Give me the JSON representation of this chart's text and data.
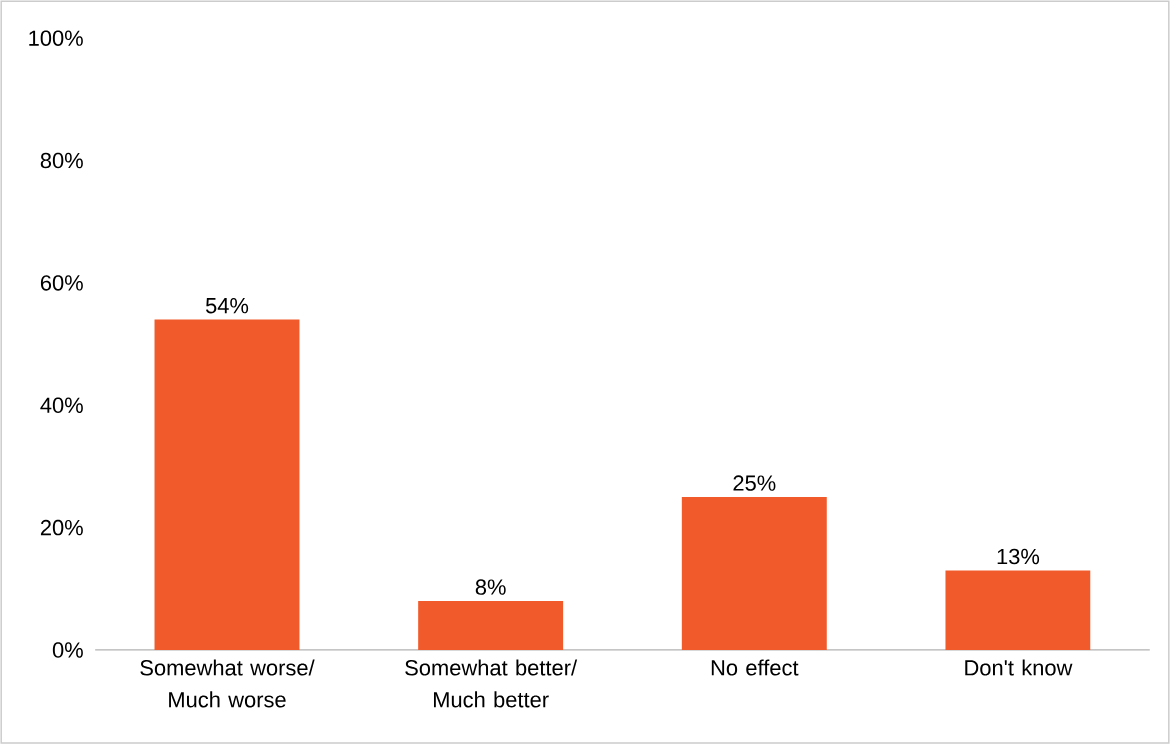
{
  "chart_data": {
    "type": "bar",
    "categories": [
      "Somewhat worse/ Much worse",
      "Somewhat better/ Much better",
      "No effect",
      "Don't know"
    ],
    "values": [
      54,
      8,
      25,
      13
    ],
    "value_labels": [
      "54%",
      "8%",
      "25%",
      "13%"
    ],
    "color": "#f15a2b",
    "ylim": [
      0,
      100
    ],
    "yticks": [
      {
        "value": 0,
        "label": "0%"
      },
      {
        "value": 20,
        "label": "20%"
      },
      {
        "value": 40,
        "label": "40%"
      },
      {
        "value": 60,
        "label": "60%"
      },
      {
        "value": 80,
        "label": "80%"
      },
      {
        "value": 100,
        "label": "100%"
      }
    ],
    "grid": false
  }
}
